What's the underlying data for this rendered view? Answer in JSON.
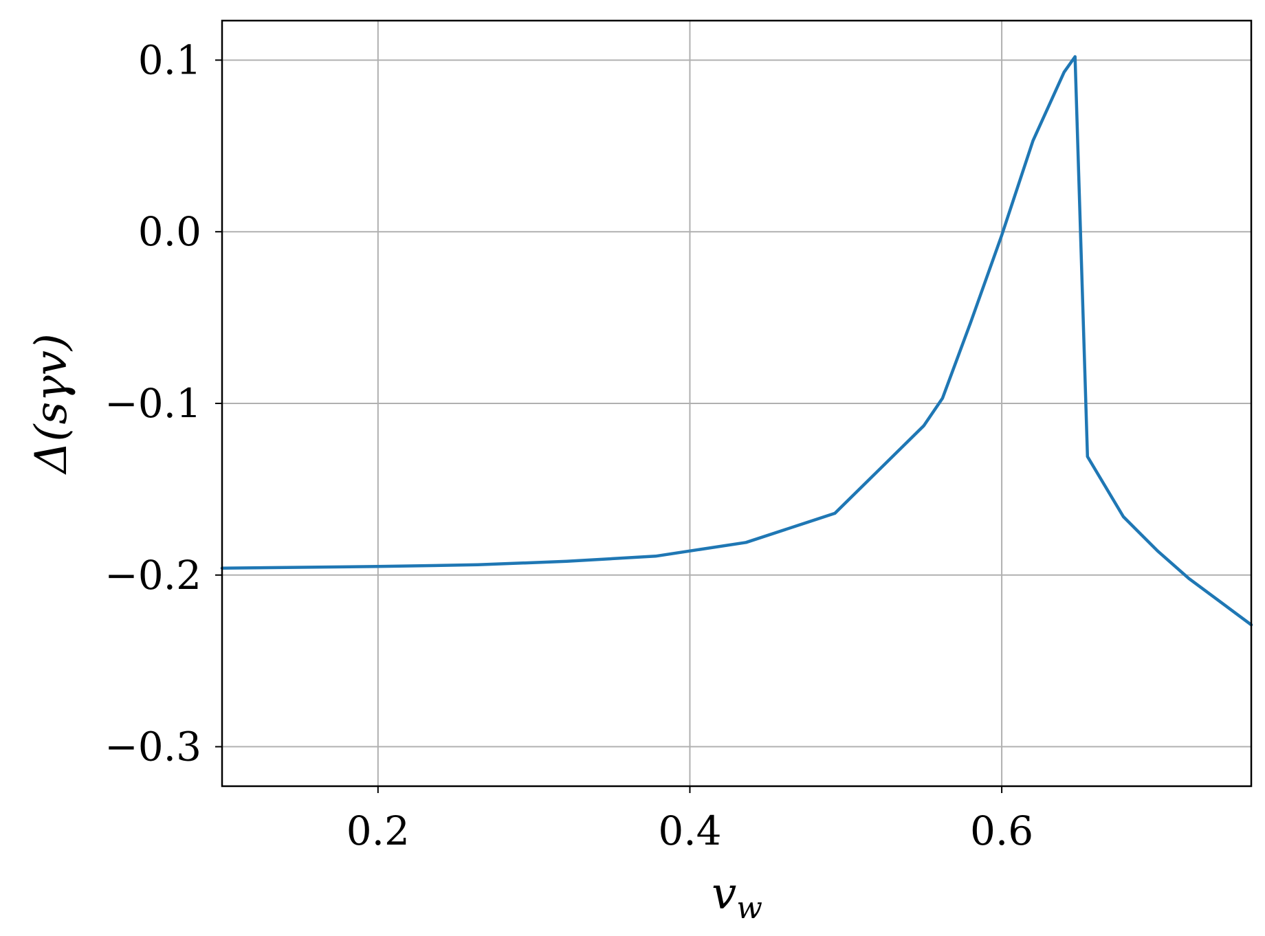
{
  "chart_data": {
    "type": "line",
    "xlabel": "v",
    "xlabel_sub": "w",
    "ylabel": "Δ(sγv)",
    "xlim": [
      0.1,
      0.76
    ],
    "ylim": [
      -0.323,
      0.123
    ],
    "xticks": [
      0.2,
      0.4,
      0.6
    ],
    "xtick_labels": [
      "0.2",
      "0.4",
      "0.6"
    ],
    "yticks": [
      0.1,
      0.0,
      -0.1,
      -0.2,
      -0.3
    ],
    "ytick_labels": [
      "0.1",
      "0.0",
      "−0.1",
      "−0.2",
      "−0.3"
    ],
    "grid": true,
    "series": [
      {
        "color": "#1f77b4",
        "x": [
          0.1,
          0.2,
          0.264,
          0.321,
          0.378,
          0.436,
          0.493,
          0.55,
          0.562,
          0.58,
          0.6,
          0.62,
          0.64,
          0.647,
          0.655,
          0.678,
          0.7,
          0.72,
          0.76
        ],
        "y": [
          -0.196,
          -0.195,
          -0.194,
          -0.192,
          -0.189,
          -0.181,
          -0.164,
          -0.113,
          -0.097,
          -0.053,
          -0.002,
          0.053,
          0.093,
          0.102,
          -0.131,
          -0.166,
          -0.186,
          -0.202,
          -0.229
        ]
      }
    ]
  }
}
